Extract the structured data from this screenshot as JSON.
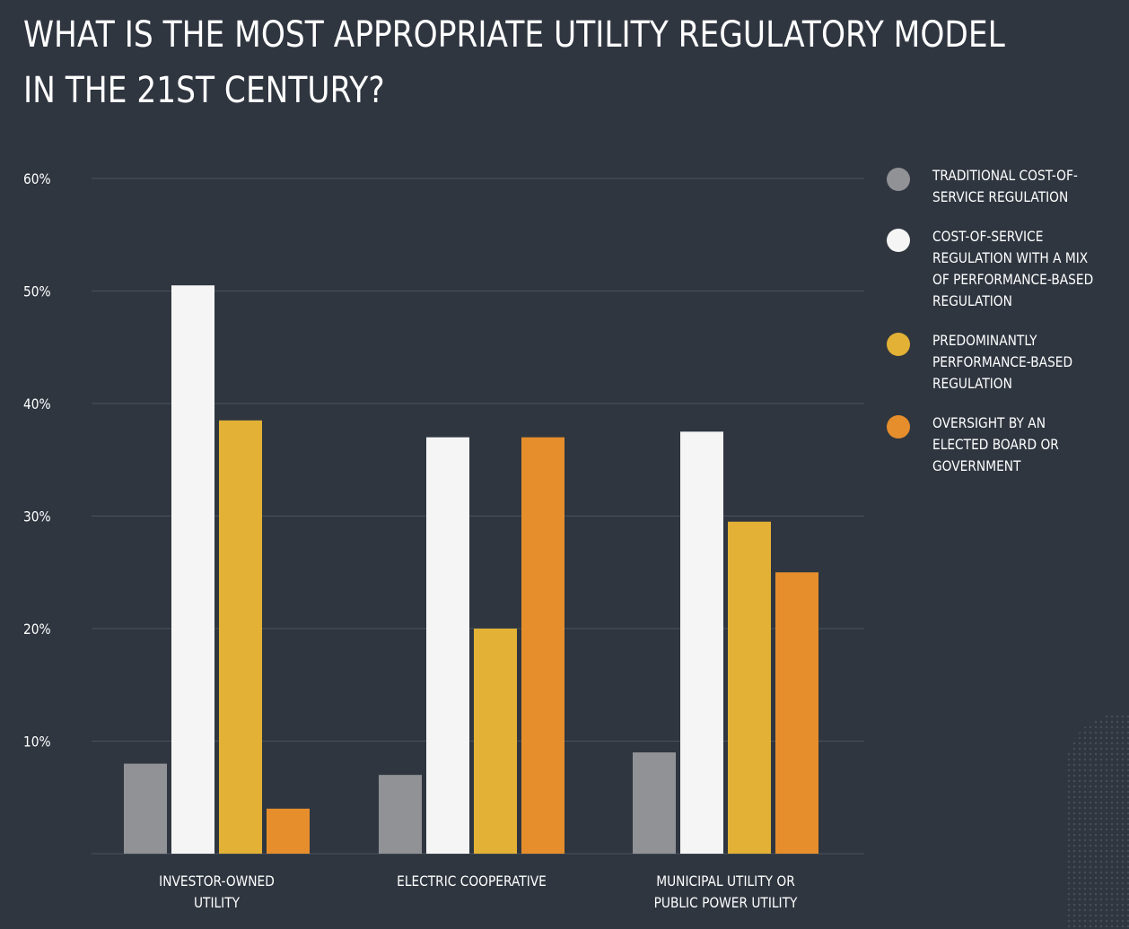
{
  "title_lines": [
    "WHAT IS THE MOST APPROPRIATE UTILITY REGULATORY MODEL",
    "IN THE 21ST CENTURY?"
  ],
  "colors": {
    "background": "#2f3640",
    "gridline": "#4a525d",
    "traditional": "#909296",
    "mix": "#f5f5f5",
    "performance": "#e2b135",
    "oversight": "#e68e2c"
  },
  "chart_data": {
    "type": "bar",
    "title": "WHAT IS THE MOST APPROPRIATE UTILITY REGULATORY MODEL IN THE 21ST CENTURY?",
    "categories": [
      [
        "INVESTOR-OWNED",
        "UTILITY"
      ],
      [
        "ELECTRIC COOPERATIVE"
      ],
      [
        "MUNICIPAL UTILITY OR",
        "PUBLIC POWER UTILITY"
      ]
    ],
    "series": [
      {
        "name": [
          "TRADITIONAL COST-OF-",
          "SERVICE REGULATION"
        ],
        "color": "#909296",
        "values": [
          8,
          7,
          9
        ]
      },
      {
        "name": [
          "COST-OF-SERVICE",
          "REGULATION WITH A MIX",
          "OF PERFORMANCE-BASED",
          "REGULATION"
        ],
        "color": "#f5f5f5",
        "values": [
          50.5,
          37,
          37.5
        ]
      },
      {
        "name": [
          "PREDOMINANTLY",
          "PERFORMANCE-BASED",
          "REGULATION"
        ],
        "color": "#e2b135",
        "values": [
          38.5,
          20,
          29.5
        ]
      },
      {
        "name": [
          "OVERSIGHT BY AN",
          "ELECTED BOARD OR",
          "GOVERNMENT"
        ],
        "color": "#e68e2c",
        "values": [
          4,
          37,
          25
        ]
      }
    ],
    "yticks": [
      "10%",
      "20%",
      "30%",
      "40%",
      "50%",
      "60%"
    ],
    "ytick_values": [
      10,
      20,
      30,
      40,
      50,
      60
    ],
    "ylim": [
      0,
      60
    ],
    "xlabel": "",
    "ylabel": "",
    "grid": true,
    "legend_position": "right"
  }
}
